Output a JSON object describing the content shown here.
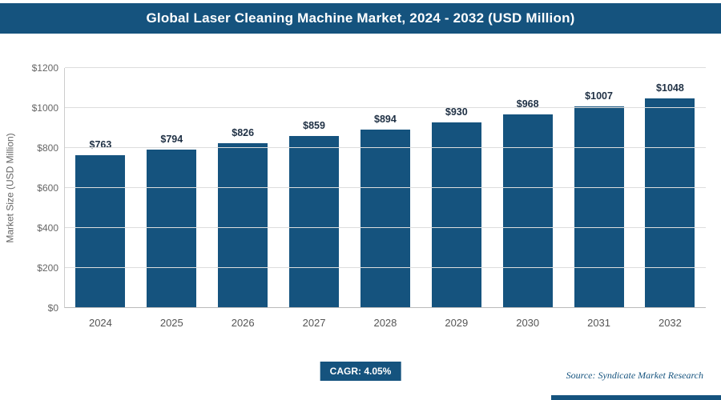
{
  "header": {
    "title": "Global Laser Cleaning Machine Market, 2024 - 2032 (USD Million)"
  },
  "chart_data": {
    "type": "bar",
    "title": "Global Laser Cleaning Machine Market, 2024 - 2032 (USD Million)",
    "categories": [
      "2024",
      "2025",
      "2026",
      "2027",
      "2028",
      "2029",
      "2030",
      "2031",
      "2032"
    ],
    "values": [
      763,
      794,
      826,
      859,
      894,
      930,
      968,
      1007,
      1048
    ],
    "value_labels": [
      "$763",
      "$794",
      "$826",
      "$859",
      "$894",
      "$930",
      "$968",
      "$1007",
      "$1048"
    ],
    "xlabel": "",
    "ylabel": "Market Size (USD Million)",
    "ylim": [
      0,
      1200
    ],
    "ytick_step": 200,
    "ytick_labels": [
      "$0",
      "$200",
      "$400",
      "$600",
      "$800",
      "$1000",
      "$1200"
    ],
    "grid": true,
    "legend_position": "none",
    "bar_color": "#15537e"
  },
  "footer": {
    "cagr_label": "CAGR: 4.05%",
    "source": "Source: Syndicate Market Research"
  },
  "colors": {
    "accent": "#15537e",
    "gridline": "#dddddd",
    "tick_text": "#666666",
    "value_text": "#1f3044"
  }
}
